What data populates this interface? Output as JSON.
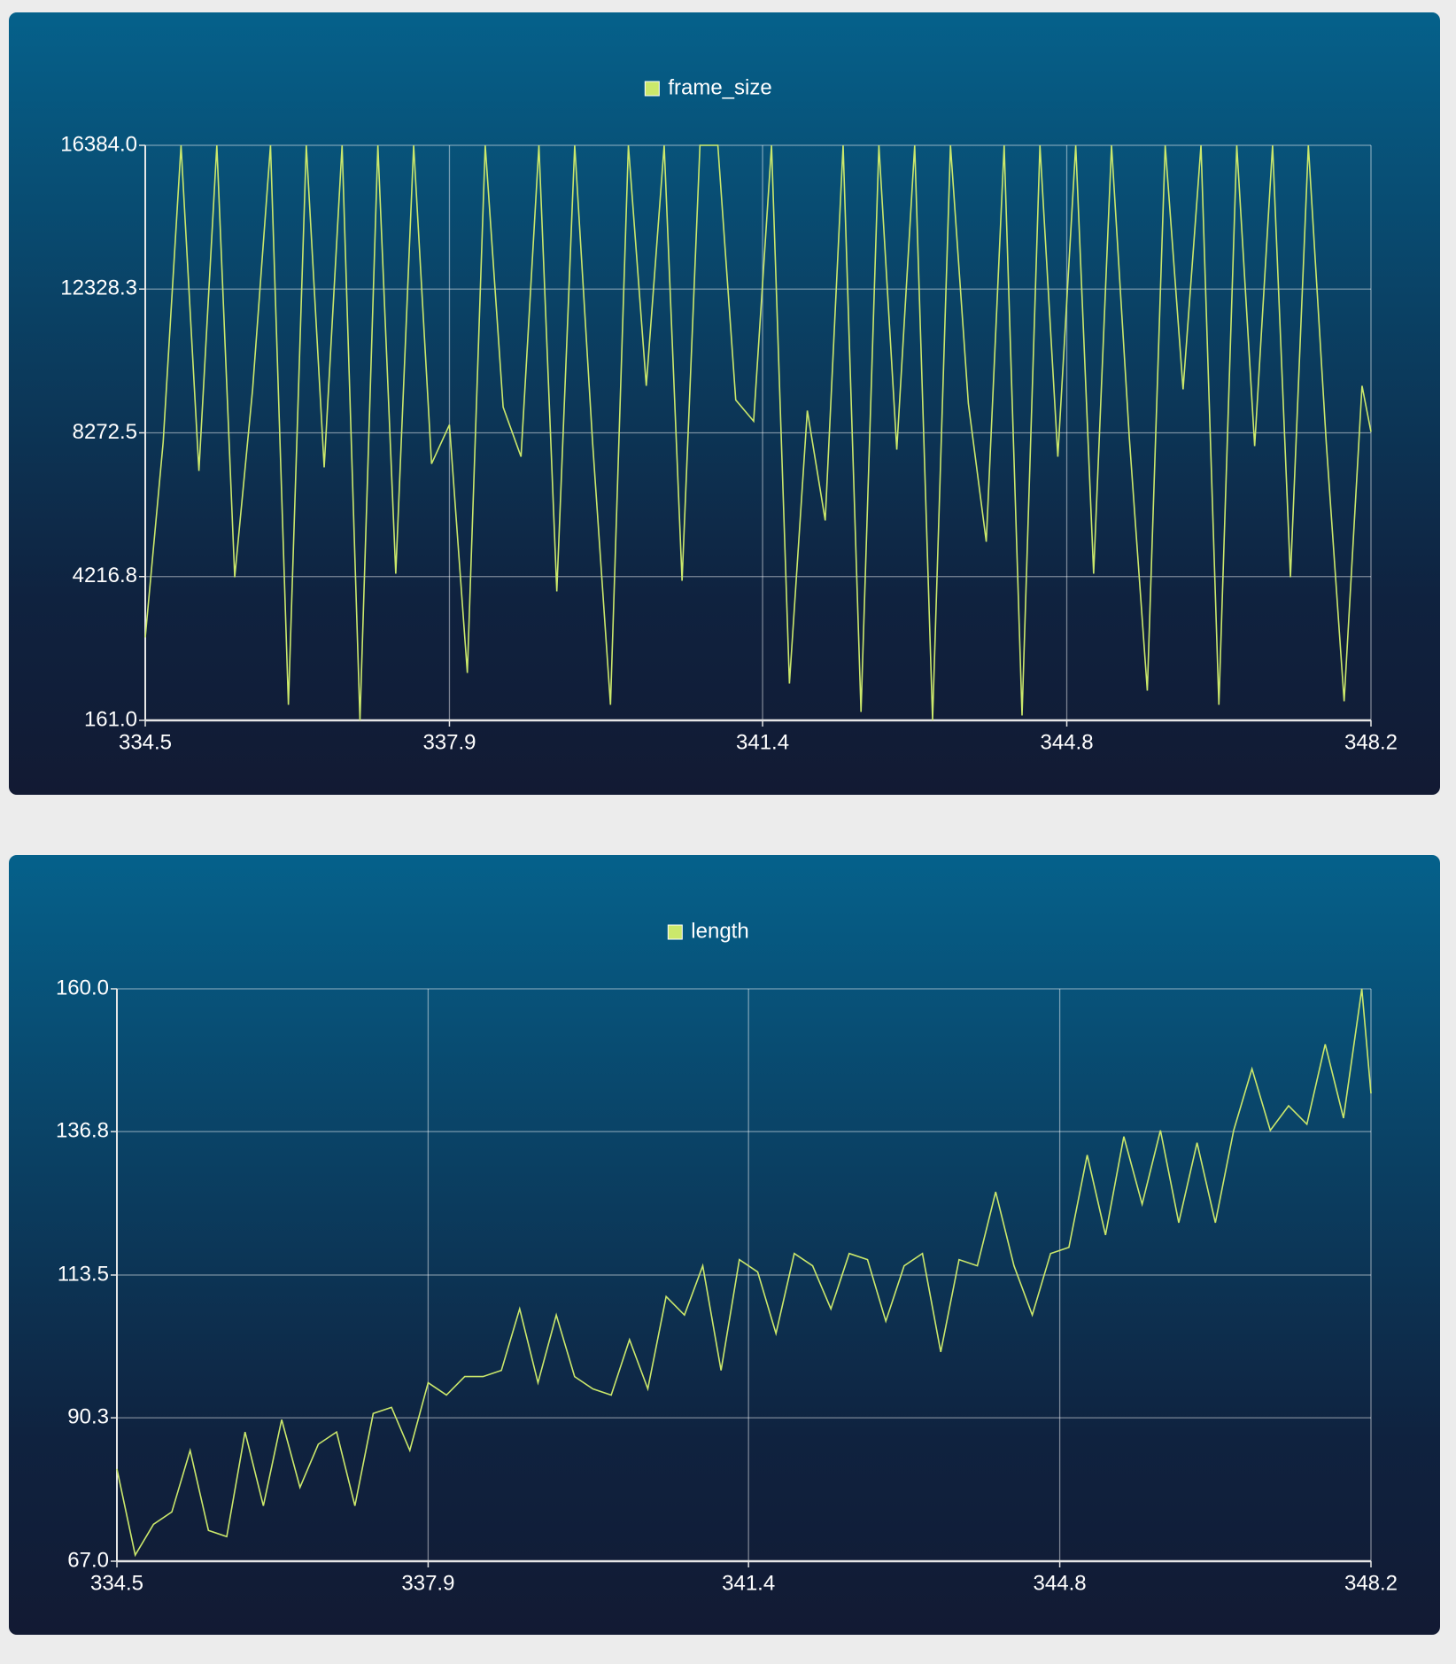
{
  "chart_data": [
    {
      "type": "line",
      "x": [
        334.5,
        334.7,
        334.9,
        335.1,
        335.3,
        335.5,
        335.7,
        335.9,
        336.1,
        336.3,
        336.5,
        336.7,
        336.9,
        337.1,
        337.3,
        337.5,
        337.7,
        337.9,
        338.1,
        338.3,
        338.5,
        338.7,
        338.9,
        339.1,
        339.3,
        339.5,
        339.7,
        339.9,
        340.1,
        340.3,
        340.5,
        340.7,
        340.9,
        341.1,
        341.3,
        341.5,
        341.7,
        341.9,
        342.1,
        342.3,
        342.5,
        342.7,
        342.9,
        343.1,
        343.3,
        343.5,
        343.7,
        343.9,
        344.1,
        344.3,
        344.5,
        344.7,
        344.9,
        345.1,
        345.3,
        345.5,
        345.7,
        345.9,
        346.1,
        346.3,
        346.5,
        346.7,
        346.9,
        347.1,
        347.3,
        347.5,
        347.7,
        347.9,
        348.1,
        348.2
      ],
      "series": [
        {
          "name": "frame_size",
          "color": "#cbe86b",
          "values": [
            2500,
            8000,
            16384,
            7200,
            16384,
            4200,
            9500,
            16384,
            600,
            16384,
            7300,
            16384,
            161,
            16384,
            4300,
            16384,
            7400,
            8500,
            1500,
            16384,
            9000,
            7600,
            16384,
            3800,
            16384,
            8000,
            600,
            16384,
            9600,
            16384,
            4100,
            16384,
            16384,
            9200,
            8600,
            16384,
            1200,
            8900,
            5800,
            16384,
            400,
            16384,
            7800,
            16384,
            161,
            16384,
            9100,
            5200,
            16384,
            300,
            16384,
            7600,
            16384,
            4300,
            16384,
            8100,
            1000,
            16384,
            9500,
            16384,
            600,
            16384,
            7900,
            16384,
            4200,
            16384,
            8000,
            700,
            9600,
            8300
          ]
        }
      ],
      "xlim": [
        334.5,
        348.2
      ],
      "xticks": [
        334.5,
        337.9,
        341.4,
        344.8,
        348.2
      ],
      "ylim": [
        161,
        16384
      ],
      "yticks": [
        {
          "value": 161,
          "label": "161.0"
        },
        4216.8,
        8272.5,
        12328.3,
        {
          "value": 16384,
          "label": "16384.0"
        }
      ],
      "grid": true
    },
    {
      "type": "line",
      "x": [
        334.5,
        334.7,
        334.9,
        335.1,
        335.3,
        335.5,
        335.7,
        335.9,
        336.1,
        336.3,
        336.5,
        336.7,
        336.9,
        337.1,
        337.3,
        337.5,
        337.7,
        337.9,
        338.1,
        338.3,
        338.5,
        338.7,
        338.9,
        339.1,
        339.3,
        339.5,
        339.7,
        339.9,
        340.1,
        340.3,
        340.5,
        340.7,
        340.9,
        341.1,
        341.3,
        341.5,
        341.7,
        341.9,
        342.1,
        342.3,
        342.5,
        342.7,
        342.9,
        343.1,
        343.3,
        343.5,
        343.7,
        343.9,
        344.1,
        344.3,
        344.5,
        344.7,
        344.9,
        345.1,
        345.3,
        345.5,
        345.7,
        345.9,
        346.1,
        346.3,
        346.5,
        346.7,
        346.9,
        347.1,
        347.3,
        347.5,
        347.7,
        347.9,
        348.1,
        348.2
      ],
      "series": [
        {
          "name": "length",
          "color": "#cbe86b",
          "values": [
            82,
            68,
            73,
            75,
            85,
            72,
            71,
            88,
            76,
            90,
            79,
            86,
            88,
            76,
            91,
            92,
            85,
            96,
            94,
            97,
            97,
            98,
            108,
            96,
            107,
            97,
            95,
            94,
            103,
            95,
            110,
            107,
            115,
            98,
            116,
            114,
            104,
            117,
            115,
            108,
            117,
            116,
            106,
            115,
            117,
            101,
            116,
            115,
            127,
            115,
            107,
            117,
            118,
            133,
            120,
            136,
            125,
            137,
            122,
            135,
            122,
            137,
            147,
            137,
            141,
            138,
            151,
            139,
            160,
            143
          ]
        }
      ],
      "xlim": [
        334.5,
        348.2
      ],
      "xticks": [
        334.5,
        337.9,
        341.4,
        344.8,
        348.2
      ],
      "ylim": [
        67,
        160
      ],
      "yticks": [
        {
          "value": 67,
          "label": "67.0"
        },
        90.3,
        113.5,
        136.8,
        {
          "value": 160,
          "label": "160.0"
        }
      ],
      "grid": true
    }
  ]
}
